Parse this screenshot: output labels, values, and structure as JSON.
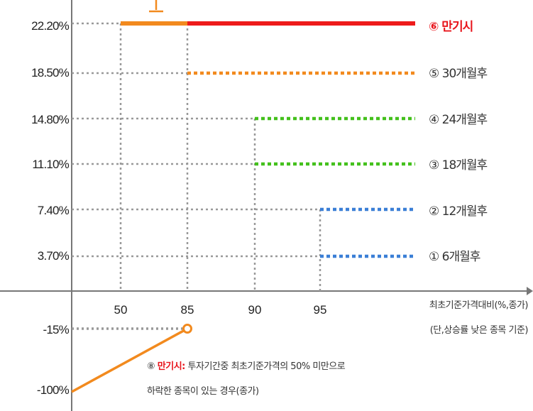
{
  "chart_data": {
    "type": "line",
    "x_ticks": [
      "50",
      "85",
      "90",
      "95"
    ],
    "xlabel_line1": "최초기준가격대비(%,종가)",
    "xlabel_line2": "(단,상승률 낮은 종목 기준)",
    "y_ticks": [
      "22.20%",
      "18.50%",
      "14.80%",
      "11.10%",
      "7.40%",
      "3.70%",
      "-15%",
      "-100%"
    ],
    "series": [
      {
        "name": "⑥ 만기시",
        "x_from": 85,
        "y": 22.2,
        "style": "solid",
        "color": "#ee1b1b"
      },
      {
        "name": "⑤ 30개월후",
        "x_from": 85,
        "y": 18.5,
        "style": "dotted",
        "color": "#f28a1e"
      },
      {
        "name": "④ 24개월후",
        "x_from": 90,
        "y": 14.8,
        "style": "dotted",
        "color": "#43c01c"
      },
      {
        "name": "③ 18개월후",
        "x_from": 90,
        "y": 11.1,
        "style": "dotted",
        "color": "#43c01c"
      },
      {
        "name": "② 12개월후",
        "x_from": 95,
        "y": 7.4,
        "style": "dotted",
        "color": "#3b7fd6"
      },
      {
        "name": "① 6개월후",
        "x_from": 95,
        "y": 3.7,
        "style": "dotted",
        "color": "#3b7fd6"
      }
    ],
    "maturity_flat": {
      "x_from": 50,
      "x_to": 85,
      "y": 22.2,
      "color": "#f28a1e"
    },
    "loss_line": {
      "points": [
        [
          0,
          -100
        ],
        [
          85,
          -15
        ]
      ],
      "color": "#f28a1e"
    },
    "note_prefix": "⑧ ",
    "note_red": "만기시:",
    "note_line1": " 투자기간중 최초기준가격의 50% 미만으로",
    "note_line2": "하락한 종목이 있는 경우(종가)"
  }
}
